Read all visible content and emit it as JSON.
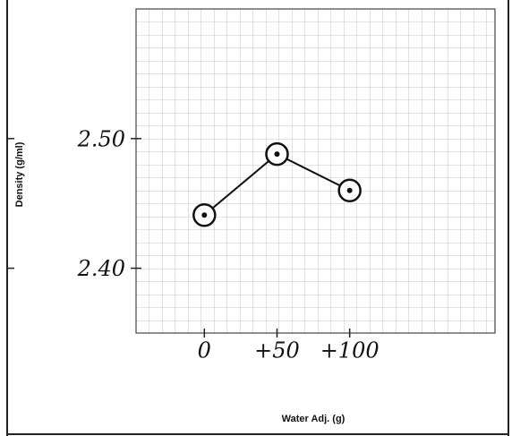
{
  "chart_data": {
    "type": "line",
    "x_label": "Water Adj. (g)",
    "y_label": "Density (g/ml)",
    "x": [
      0,
      50,
      100
    ],
    "series": [
      {
        "values": [
          2.441,
          2.488,
          2.46
        ],
        "color": "#111111"
      }
    ],
    "xlim": [
      -47,
      200
    ],
    "xticks": [
      0,
      {
        "value": 50,
        "label": "+50"
      },
      {
        "value": 100,
        "label": "+100"
      }
    ],
    "ylim": [
      2.35,
      2.6
    ],
    "yticks": [
      {
        "value": 2.4,
        "label": "2.40"
      },
      {
        "value": 2.5,
        "label": "2.50"
      }
    ],
    "grid": true
  }
}
